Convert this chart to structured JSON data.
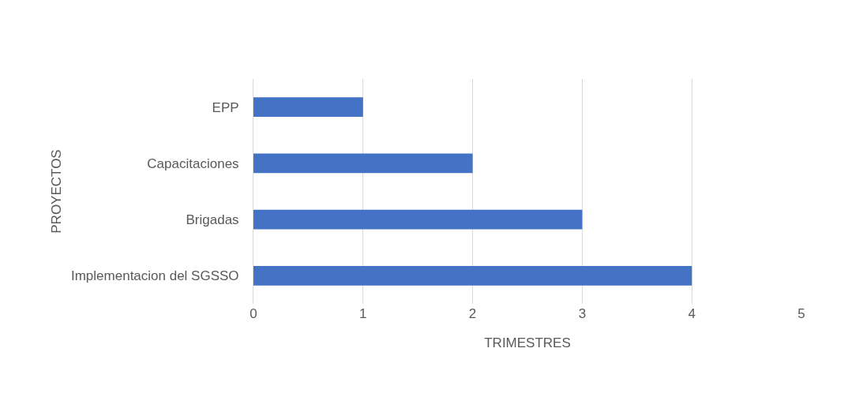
{
  "chart_data": {
    "type": "bar",
    "orientation": "horizontal",
    "categories": [
      "EPP",
      "Capacitaciones",
      "Brigadas",
      "Implementacion del SGSSO"
    ],
    "values": [
      1,
      2,
      3,
      4
    ],
    "color": "#4472c4",
    "xlabel": "TRIMESTRES",
    "ylabel": "PROYECTOS",
    "xlim": [
      0,
      5
    ],
    "xticks": [
      0,
      1,
      2,
      3,
      4,
      5
    ],
    "grid": "x"
  }
}
